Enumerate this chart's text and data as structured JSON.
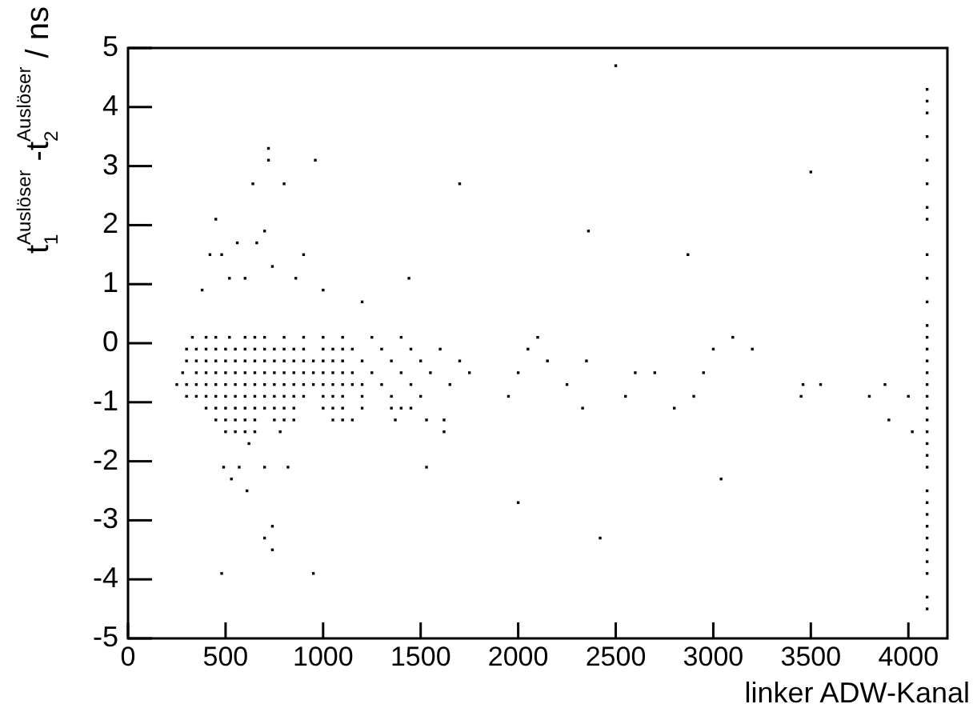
{
  "chart_data": {
    "type": "scatter",
    "xlabel": "linker ADW-Kanal",
    "ylabel": "t$_{1}$$^{Auslöser}$ -t$_{2}$$^{Auslöser}$ / ns",
    "xlim": [
      0,
      4200
    ],
    "xticks": [
      0,
      500,
      1000,
      1500,
      2000,
      2500,
      3000,
      3500,
      4000
    ],
    "ylim": [
      -5,
      5
    ],
    "yticks": [
      -5,
      -4,
      -3,
      -2,
      -1,
      0,
      1,
      2,
      3,
      4,
      5
    ],
    "grid": false,
    "legend": false,
    "marker": "square",
    "series": [
      {
        "color": "#000000",
        "x": [
          330,
          400,
          450,
          520,
          600,
          650,
          700,
          800,
          900,
          1000,
          1100,
          1250,
          1400,
          300,
          350,
          400,
          450,
          500,
          550,
          600,
          650,
          700,
          750,
          800,
          850,
          900,
          1000,
          1050,
          1100,
          1150,
          1300,
          1450,
          1600,
          300,
          350,
          400,
          450,
          500,
          550,
          600,
          650,
          700,
          750,
          800,
          850,
          900,
          950,
          1000,
          1050,
          1100,
          1200,
          1350,
          1500,
          1700,
          280,
          350,
          400,
          450,
          500,
          550,
          600,
          650,
          700,
          750,
          800,
          850,
          900,
          950,
          1000,
          1050,
          1100,
          1150,
          1250,
          1400,
          1550,
          1750,
          250,
          300,
          350,
          400,
          450,
          500,
          550,
          600,
          650,
          700,
          750,
          800,
          850,
          900,
          950,
          1000,
          1050,
          1100,
          1150,
          1200,
          1300,
          1450,
          1650,
          300,
          350,
          400,
          450,
          500,
          550,
          600,
          650,
          700,
          750,
          800,
          850,
          900,
          1000,
          1050,
          1100,
          1200,
          1350,
          1500,
          400,
          450,
          500,
          550,
          600,
          650,
          700,
          750,
          800,
          850,
          1000,
          1050,
          1100,
          1200,
          1350,
          1400,
          1450,
          450,
          500,
          550,
          600,
          650,
          750,
          800,
          850,
          1050,
          1100,
          1150,
          1370,
          1530,
          1620,
          500,
          550,
          600,
          650,
          780,
          1620,
          620,
          480,
          950,
          700,
          740,
          740,
          2420,
          2000,
          3040,
          610,
          530,
          490,
          570,
          700,
          820,
          1530,
          2500,
          720,
          720,
          960,
          3500,
          640,
          800,
          1700,
          660,
          450,
          420,
          480,
          560,
          700,
          900,
          2360,
          2870,
          380,
          520,
          600,
          740,
          860,
          1000,
          1200,
          1440,
          3100,
          3200,
          3550,
          3800,
          3900,
          4020,
          3450,
          2900,
          2800,
          2700,
          2600,
          2950,
          3000,
          2550,
          2330,
          2250,
          2150,
          2050,
          2000,
          1950,
          2100,
          2350,
          3460,
          3880,
          4000,
          4096,
          4096,
          4096,
          4096,
          4096,
          4096,
          4096,
          4096,
          4096,
          4096,
          4096,
          4096,
          4096,
          4096,
          4096,
          4096,
          4096,
          4096,
          4096,
          4096,
          4096,
          4096,
          4096,
          4096,
          4096,
          4096,
          4096,
          4096,
          4096,
          4096,
          4096,
          4096,
          4096,
          4096
        ],
        "values": [
          0.1,
          0.1,
          0.1,
          0.1,
          0.1,
          0.1,
          0.1,
          0.1,
          0.1,
          0.1,
          0.1,
          0.1,
          0.1,
          -0.1,
          -0.1,
          -0.1,
          -0.1,
          -0.1,
          -0.1,
          -0.1,
          -0.1,
          -0.1,
          -0.1,
          -0.1,
          -0.1,
          -0.1,
          -0.1,
          -0.1,
          -0.1,
          -0.1,
          -0.1,
          -0.1,
          -0.1,
          -0.3,
          -0.3,
          -0.3,
          -0.3,
          -0.3,
          -0.3,
          -0.3,
          -0.3,
          -0.3,
          -0.3,
          -0.3,
          -0.3,
          -0.3,
          -0.3,
          -0.3,
          -0.3,
          -0.3,
          -0.3,
          -0.3,
          -0.3,
          -0.3,
          -0.5,
          -0.5,
          -0.5,
          -0.5,
          -0.5,
          -0.5,
          -0.5,
          -0.5,
          -0.5,
          -0.5,
          -0.5,
          -0.5,
          -0.5,
          -0.5,
          -0.5,
          -0.5,
          -0.5,
          -0.5,
          -0.5,
          -0.5,
          -0.5,
          -0.5,
          -0.7,
          -0.7,
          -0.7,
          -0.7,
          -0.7,
          -0.7,
          -0.7,
          -0.7,
          -0.7,
          -0.7,
          -0.7,
          -0.7,
          -0.7,
          -0.7,
          -0.7,
          -0.7,
          -0.7,
          -0.7,
          -0.7,
          -0.7,
          -0.7,
          -0.7,
          -0.7,
          -0.9,
          -0.9,
          -0.9,
          -0.9,
          -0.9,
          -0.9,
          -0.9,
          -0.9,
          -0.9,
          -0.9,
          -0.9,
          -0.9,
          -0.9,
          -0.9,
          -0.9,
          -0.9,
          -0.9,
          -0.9,
          -0.9,
          -1.1,
          -1.1,
          -1.1,
          -1.1,
          -1.1,
          -1.1,
          -1.1,
          -1.1,
          -1.1,
          -1.1,
          -1.1,
          -1.1,
          -1.1,
          -1.1,
          -1.1,
          -1.1,
          -1.1,
          -1.3,
          -1.3,
          -1.3,
          -1.3,
          -1.3,
          -1.3,
          -1.3,
          -1.3,
          -1.3,
          -1.3,
          -1.3,
          -1.3,
          -1.3,
          -1.3,
          -1.5,
          -1.5,
          -1.5,
          -1.5,
          -1.5,
          -1.5,
          -1.7,
          -3.9,
          -3.9,
          -3.3,
          -3.5,
          -3.1,
          -3.3,
          -2.7,
          -2.3,
          -2.5,
          -2.3,
          -2.1,
          -2.1,
          -2.1,
          -2.1,
          -2.1,
          4.7,
          3.3,
          3.1,
          3.1,
          2.9,
          2.7,
          2.7,
          2.7,
          1.7,
          2.1,
          1.5,
          1.5,
          1.7,
          1.9,
          1.5,
          1.9,
          1.5,
          0.9,
          1.1,
          1.1,
          1.3,
          1.1,
          0.9,
          0.7,
          1.1,
          0.1,
          -0.1,
          -0.7,
          -0.9,
          -1.3,
          -1.5,
          -0.9,
          -0.9,
          -1.1,
          -0.5,
          -0.5,
          -0.5,
          -0.1,
          -0.9,
          -1.1,
          -0.7,
          -0.3,
          -0.1,
          -0.5,
          -0.9,
          0.1,
          -0.3,
          -0.7,
          -0.7,
          -0.9,
          4.3,
          4.1,
          3.9,
          3.5,
          3.1,
          2.7,
          2.3,
          2.1,
          1.5,
          1.1,
          0.7,
          0.3,
          0.1,
          -0.1,
          -0.3,
          -0.5,
          -0.7,
          -0.9,
          -1.1,
          -1.3,
          -1.5,
          -1.7,
          -1.9,
          -2.1,
          -2.5,
          -2.7,
          -2.9,
          -3.1,
          -3.3,
          -3.5,
          -3.7,
          -3.9,
          -4.3,
          -4.5
        ]
      }
    ]
  }
}
